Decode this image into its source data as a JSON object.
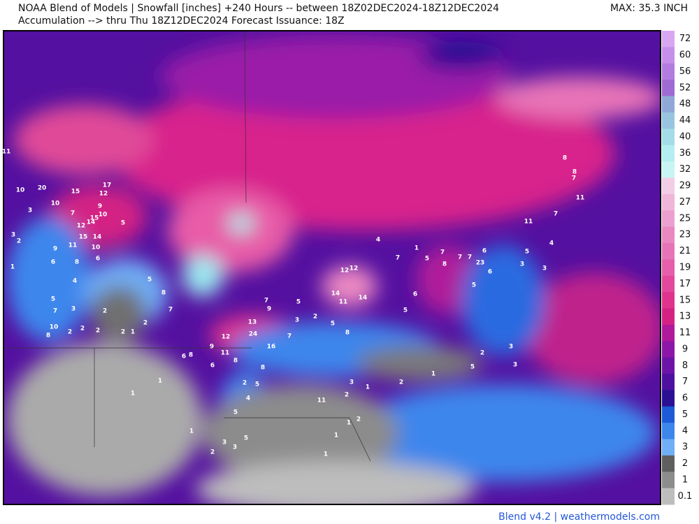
{
  "header": {
    "line1": "NOAA Blend of Models | Snowfall [inches] +240 Hours -- between 18Z02DEC2024-18Z12DEC2024",
    "line2": "Accumulation --> thru Thu 18Z12DEC2024   Forecast Issuance: 18Z",
    "max": "MAX: 35.3 INCH"
  },
  "footer": "Blend v4.2 | weathermodels.com",
  "colorbar": {
    "levels": [
      72,
      60,
      56,
      52,
      48,
      44,
      40,
      36,
      32,
      29,
      27,
      25,
      23,
      21,
      19,
      17,
      15,
      13,
      11,
      9,
      8,
      7,
      6,
      5,
      4,
      3,
      2,
      1,
      0.1
    ],
    "colors": [
      "#d9a6f2",
      "#c690ea",
      "#b37ce0",
      "#a06ad4",
      "#8fa8d8",
      "#98c4e0",
      "#a4dde8",
      "#b4eef0",
      "#c9f4f4",
      "#f3cde6",
      "#efb6da",
      "#eca0cf",
      "#ea88c2",
      "#e874b8",
      "#e55fab",
      "#e2489c",
      "#df338e",
      "#d42284",
      "#b01a9a",
      "#8c16a8",
      "#6c14a8",
      "#4e10a0",
      "#2c1094",
      "#1c5ad8",
      "#3c86ec",
      "#70aef6",
      "#5f5f5f",
      "#8c8c8c",
      "#bdbdbd"
    ]
  },
  "map_labels": [
    11,
    10,
    20,
    15,
    17,
    12,
    10,
    3,
    7,
    9,
    10,
    5,
    15,
    14,
    12,
    15,
    14,
    11,
    9,
    10,
    6,
    8,
    6,
    3,
    2,
    1,
    4,
    5,
    7,
    3,
    10,
    8,
    2,
    2,
    2,
    2,
    2,
    1,
    2,
    5,
    8,
    7,
    8,
    6,
    6,
    9,
    12,
    11,
    8,
    13,
    24,
    16,
    8,
    7,
    9,
    5,
    3,
    2,
    5,
    8,
    7,
    14,
    11,
    14,
    12,
    12,
    4,
    7,
    1,
    6,
    5,
    5,
    7,
    8,
    7,
    7,
    23,
    6,
    6,
    5,
    8,
    8,
    7,
    11,
    7,
    11,
    5,
    4,
    3,
    3,
    3,
    3,
    5,
    2,
    1,
    2,
    3,
    11,
    2,
    1,
    2,
    5,
    4,
    5,
    3,
    3,
    5,
    2,
    1,
    1,
    1,
    1,
    1,
    1,
    2
  ]
}
